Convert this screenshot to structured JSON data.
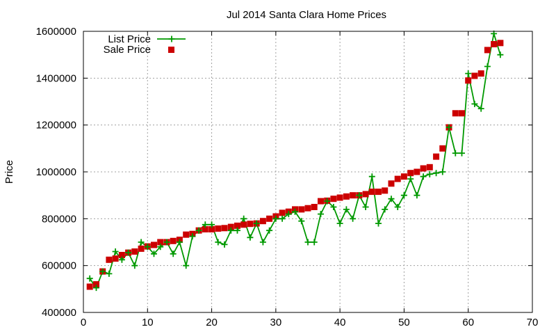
{
  "chart_data": {
    "type": "line",
    "title": "Jul 2014 Santa Clara Home Prices",
    "xlabel": "",
    "ylabel": "Price",
    "xlim": [
      0,
      70
    ],
    "ylim": [
      400000,
      1600000
    ],
    "xticks": [
      0,
      10,
      20,
      30,
      40,
      50,
      60,
      70
    ],
    "yticks": [
      400000,
      600000,
      800000,
      1000000,
      1200000,
      1400000,
      1600000
    ],
    "grid": true,
    "legend_position": "top-left",
    "series": [
      {
        "name": "List Price",
        "style": "line+cross",
        "color": "#009900",
        "x": [
          1,
          2,
          3,
          4,
          5,
          6,
          7,
          8,
          9,
          10,
          11,
          12,
          13,
          14,
          15,
          16,
          17,
          18,
          19,
          20,
          21,
          22,
          23,
          24,
          25,
          26,
          27,
          28,
          29,
          30,
          31,
          32,
          33,
          34,
          35,
          36,
          37,
          38,
          39,
          40,
          41,
          42,
          43,
          44,
          45,
          46,
          47,
          48,
          49,
          50,
          51,
          52,
          53,
          54,
          55,
          56,
          57,
          58,
          59,
          60,
          61,
          62,
          63,
          64,
          65
        ],
        "y": [
          545000,
          505000,
          575000,
          565000,
          660000,
          625000,
          655000,
          600000,
          700000,
          680000,
          650000,
          680000,
          700000,
          650000,
          700000,
          600000,
          725000,
          750000,
          775000,
          775000,
          700000,
          690000,
          750000,
          750000,
          800000,
          720000,
          780000,
          700000,
          750000,
          800000,
          800000,
          820000,
          830000,
          790000,
          700000,
          700000,
          820000,
          875000,
          850000,
          780000,
          840000,
          800000,
          900000,
          850000,
          980000,
          780000,
          840000,
          885000,
          850000,
          900000,
          970000,
          900000,
          980000,
          990000,
          995000,
          1000000,
          1190000,
          1080000,
          1080000,
          1420000,
          1290000,
          1270000,
          1450000,
          1590000,
          1500000
        ]
      },
      {
        "name": "Sale Price",
        "style": "square",
        "color": "#cc0000",
        "x": [
          1,
          2,
          3,
          4,
          5,
          6,
          7,
          8,
          9,
          10,
          11,
          12,
          13,
          14,
          15,
          16,
          17,
          18,
          19,
          20,
          21,
          22,
          23,
          24,
          25,
          26,
          27,
          28,
          29,
          30,
          31,
          32,
          33,
          34,
          35,
          36,
          37,
          38,
          39,
          40,
          41,
          42,
          43,
          44,
          45,
          46,
          47,
          48,
          49,
          50,
          51,
          52,
          53,
          54,
          55,
          56,
          57,
          58,
          59,
          60,
          61,
          62,
          63,
          64,
          65
        ],
        "y": [
          510000,
          520000,
          575000,
          625000,
          630000,
          645000,
          655000,
          660000,
          672000,
          682000,
          688000,
          700000,
          700000,
          705000,
          710000,
          732000,
          735000,
          750000,
          755000,
          755000,
          758000,
          760000,
          765000,
          770000,
          775000,
          778000,
          780000,
          790000,
          800000,
          810000,
          825000,
          830000,
          840000,
          840000,
          845000,
          850000,
          875000,
          877000,
          885000,
          890000,
          895000,
          900000,
          900000,
          905000,
          915000,
          915000,
          920000,
          950000,
          970000,
          980000,
          995000,
          1000000,
          1015000,
          1020000,
          1065000,
          1100000,
          1190000,
          1250000,
          1250000,
          1390000,
          1410000,
          1420000,
          1520000,
          1545000,
          1550000
        ]
      }
    ]
  }
}
